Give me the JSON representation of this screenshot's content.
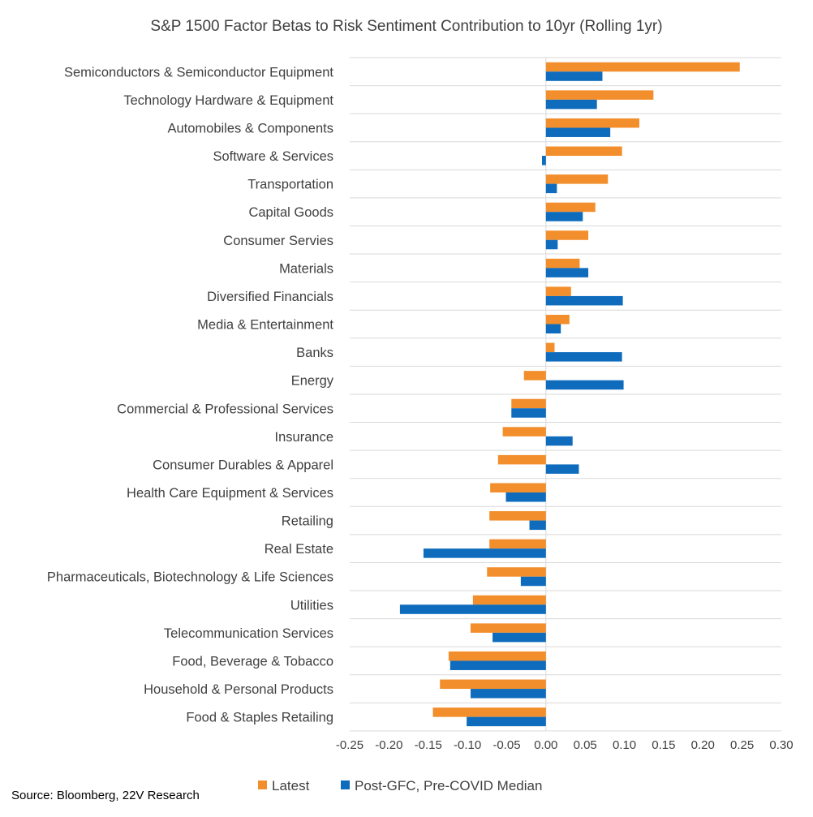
{
  "chart_data": {
    "type": "bar",
    "orientation": "horizontal",
    "title": "S&P 1500 Factor Betas to Risk Sentiment Contribution to 10yr (Rolling 1yr)",
    "source": "Source: Bloomberg, 22V Research",
    "categories": [
      "Semiconductors & Semiconductor Equipment",
      "Technology Hardware & Equipment",
      "Automobiles & Components",
      "Software & Services",
      "Transportation",
      "Capital Goods",
      "Consumer Servies",
      "Materials",
      "Diversified Financials",
      "Media & Entertainment",
      "Banks",
      "Energy",
      "Commercial & Professional Services",
      "Insurance",
      "Consumer Durables & Apparel",
      "Health Care Equipment & Services",
      "Retailing",
      "Real Estate",
      "Pharmaceuticals, Biotechnology & Life Sciences",
      "Utilities",
      "Telecommunication Services",
      "Food, Beverage & Tobacco",
      "Household & Personal Products",
      "Food & Staples Retailing"
    ],
    "series": [
      {
        "name": "Latest",
        "color": "#f28e2b",
        "values": [
          0.247,
          0.137,
          0.119,
          0.097,
          0.079,
          0.063,
          0.054,
          0.043,
          0.032,
          0.03,
          0.011,
          -0.028,
          -0.044,
          -0.055,
          -0.061,
          -0.071,
          -0.072,
          -0.072,
          -0.075,
          -0.093,
          -0.096,
          -0.124,
          -0.135,
          -0.144
        ]
      },
      {
        "name": "Post-GFC, Pre-COVID Median",
        "color": "#0f6cbd",
        "values": [
          0.072,
          0.065,
          0.082,
          -0.005,
          0.014,
          0.047,
          0.015,
          0.054,
          0.098,
          0.019,
          0.097,
          0.099,
          -0.044,
          0.034,
          0.042,
          -0.051,
          -0.021,
          -0.156,
          -0.032,
          -0.186,
          -0.068,
          -0.122,
          -0.096,
          -0.101
        ]
      }
    ],
    "xlim": [
      -0.25,
      0.3
    ],
    "xticks": [
      -0.25,
      -0.2,
      -0.15,
      -0.1,
      -0.05,
      0.0,
      0.05,
      0.1,
      0.15,
      0.2,
      0.25,
      0.3
    ],
    "xtick_labels": [
      "-0.25",
      "-0.20",
      "-0.15",
      "-0.10",
      "-0.05",
      "0.00",
      "0.05",
      "0.10",
      "0.15",
      "0.20",
      "0.25",
      "0.30"
    ],
    "grid": "horizontal",
    "legend": "bottom"
  }
}
